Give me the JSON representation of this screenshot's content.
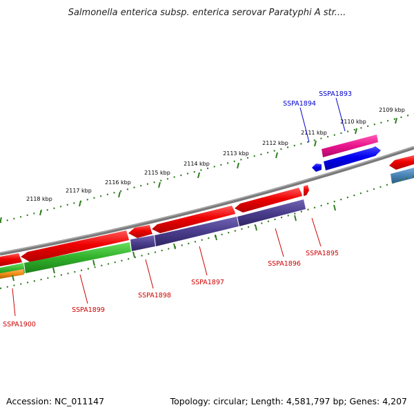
{
  "title": "Salmonella enterica subsp. enterica serovar Paratyphi A str....",
  "footer": {
    "accession": "Accession: NC_011147",
    "topology": "Topology: circular; Length: 4,581,797 bp; Genes: 4,207"
  },
  "colors": {
    "backbone": "#808080",
    "tick_marks": "#2e7d1f",
    "forward_cds": "#e6000a",
    "reverse_cds": "#0000ee",
    "pink_feature": "#e8148c",
    "purple_feature": "#4a3d8c",
    "green_feature": "#2fb02a",
    "orange_feature": "#f08c14",
    "steel_feature": "#4682b4",
    "forward_label": "#cc0000",
    "reverse_label": "#0000cc"
  },
  "kbp_labels": [
    "2109 kbp",
    "2110 kbp",
    "2111 kbp",
    "2112 kbp",
    "2113 kbp",
    "2114 kbp",
    "2115 kbp",
    "2116 kbp",
    "2117 kbp",
    "2118 kbp"
  ],
  "gene_labels": [
    {
      "text": "SSPA1893",
      "strand": "reverse"
    },
    {
      "text": "SSPA1894",
      "strand": "reverse"
    },
    {
      "text": "SSPA1895",
      "strand": "forward"
    },
    {
      "text": "SSPA1896",
      "strand": "forward"
    },
    {
      "text": "SSPA1897",
      "strand": "forward"
    },
    {
      "text": "SSPA1898",
      "strand": "forward"
    },
    {
      "text": "SSPA1899",
      "strand": "forward"
    },
    {
      "text": "SSPA1900",
      "strand": "forward"
    }
  ]
}
